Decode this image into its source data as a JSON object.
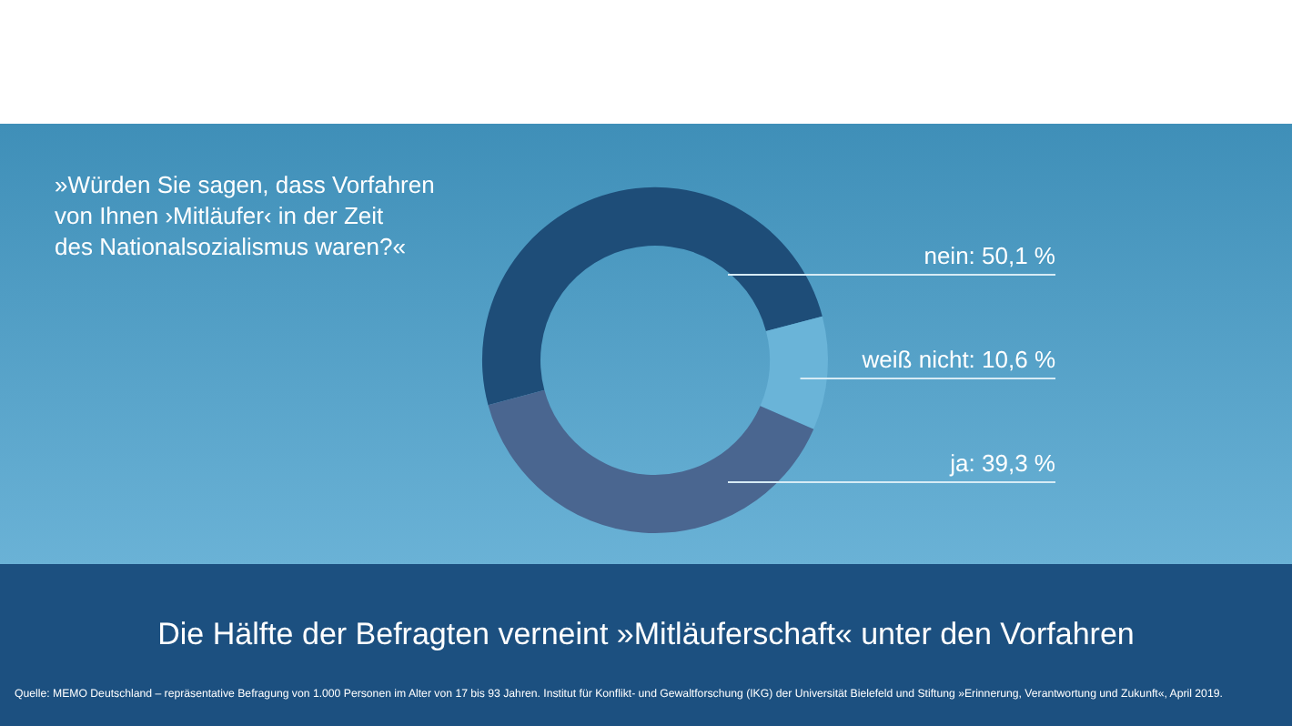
{
  "chart_data": {
    "type": "donut",
    "title": "Die Hälfte der Befragten verneint »Mitläuferschaft« unter den Vorfahren",
    "subtitle": "»Würden Sie sagen, dass Vorfahren von Ihnen ›Mitläufer‹ in der Zeit des Nationalsozialismus waren?«",
    "categories": [
      "nein",
      "weiß nicht",
      "ja"
    ],
    "values": [
      50.1,
      10.6,
      39.3
    ],
    "colors": [
      "#1e4d78",
      "#6ab4d8",
      "#4a6690"
    ],
    "value_labels": [
      "50,1 %",
      "10,6 %",
      "39,3 %"
    ],
    "annotations": [
      "Quelle: MEMO Deutschland – repräsentative Befragung von 1.000 Personen im Alter von 17 bis 93 Jahren. Institut für Konflikt- und Gewaltforschung (IKG) der Universität Bielefeld und Stiftung »Erinnerung, Verantwortung und Zukunft«, April 2019."
    ]
  }
}
